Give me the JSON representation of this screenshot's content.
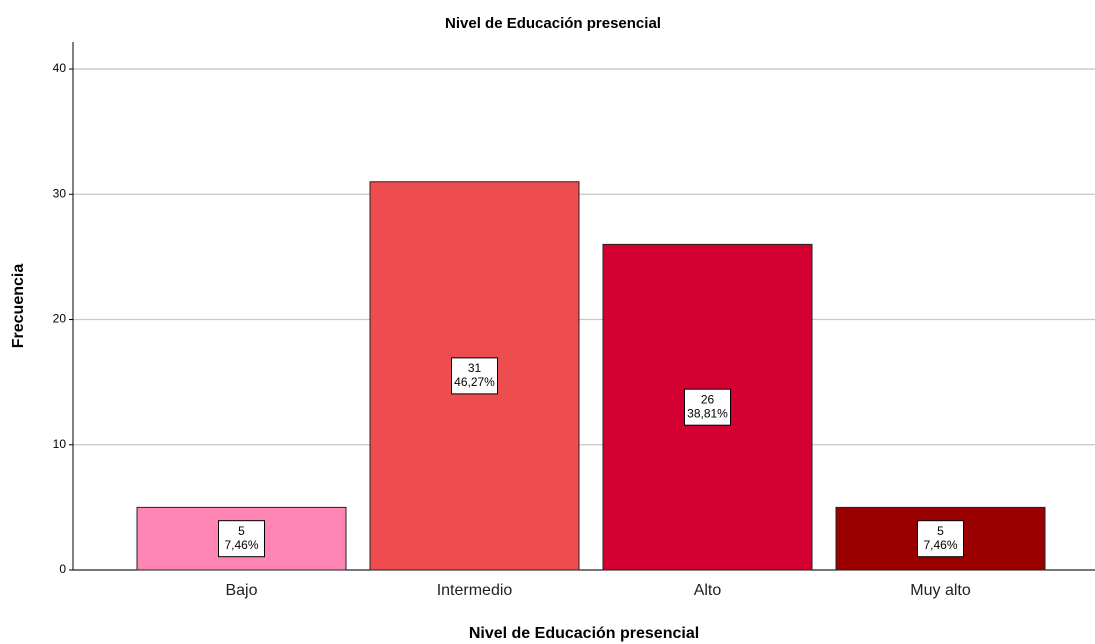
{
  "chart_data": {
    "type": "bar",
    "title": "Nivel de Educación presencial",
    "x_label": "Nivel de Educación presencial",
    "y_label": "Frecuencia",
    "categories": [
      "Bajo",
      "Intermedio",
      "Alto",
      "Muy alto"
    ],
    "values": [
      5,
      31,
      26,
      5
    ],
    "percentages": [
      7.46,
      46.27,
      38.81,
      7.46
    ],
    "percentage_labels": [
      "7,46%",
      "46,27%",
      "38,81%",
      "7,46%"
    ],
    "colors": [
      "#ff85b4",
      "#ee4d4f",
      "#d50032",
      "#9b0000"
    ],
    "ylim": [
      0,
      42
    ],
    "yticks": [
      0,
      10,
      20,
      30,
      40
    ],
    "grid": true
  }
}
